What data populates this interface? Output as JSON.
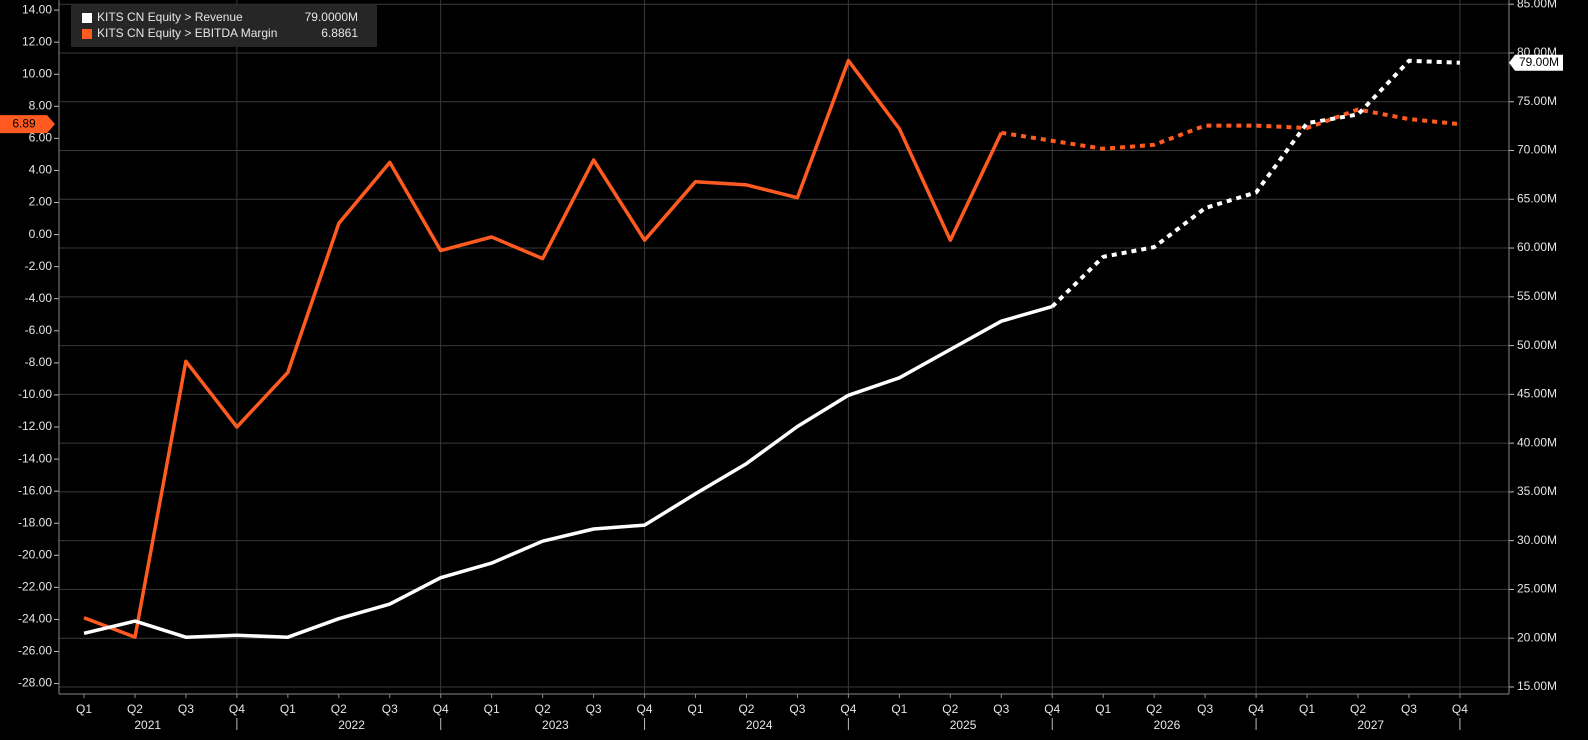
{
  "chart_data": {
    "type": "line",
    "categories": [
      "Q1",
      "Q2",
      "Q3",
      "Q4",
      "Q1",
      "Q2",
      "Q3",
      "Q4",
      "Q1",
      "Q2",
      "Q3",
      "Q4",
      "Q1",
      "Q2",
      "Q3",
      "Q4",
      "Q1",
      "Q2",
      "Q3",
      "Q4",
      "Q1",
      "Q2",
      "Q3",
      "Q4",
      "Q1",
      "Q2",
      "Q3",
      "Q4"
    ],
    "years": [
      "2021",
      "2022",
      "2023",
      "2024",
      "2025",
      "2026",
      "2027"
    ],
    "series": [
      {
        "name": "KITS CN Equity > Revenue",
        "color": "#ffffff",
        "axis": "y2",
        "dashed_from": 19,
        "legend_value": {
          "value": 79,
          "label": "79.0000M"
        },
        "axis_tag": {
          "value": 79,
          "label": "79.00M"
        },
        "values": [
          20.5,
          21.75,
          20.1,
          20.3,
          20.1,
          22.0,
          23.5,
          26.2,
          27.7,
          29.95,
          31.2,
          31.6,
          34.8,
          37.9,
          41.7,
          44.9,
          46.7,
          49.6,
          52.5,
          54.0,
          59.1,
          60.1,
          64.1,
          65.7,
          72.8,
          73.7,
          79.2,
          79.0
        ]
      },
      {
        "name": "KITS CN Equity > EBITDA Margin",
        "color": "#ff5a1f",
        "dashed_from": 18,
        "legend_value": 6.8861,
        "axis_tag": {
          "value": 6.8861,
          "label": "6.89"
        },
        "values": [
          -23.9,
          -25.1,
          -7.9,
          -12.0,
          -8.6,
          0.7,
          4.5,
          -1.0,
          -0.15,
          -1.5,
          4.65,
          -0.35,
          3.3,
          3.1,
          2.3,
          10.85,
          6.6,
          -0.35,
          6.35,
          5.85,
          5.35,
          5.6,
          6.8,
          6.8,
          6.65,
          7.8,
          7.2,
          6.8861
        ]
      }
    ],
    "ylim": [
      -28.65,
      14.63
    ],
    "yticks": [
      {
        "value": 14,
        "label": "14.00"
      },
      {
        "value": 12,
        "label": "12.00"
      },
      {
        "value": 10,
        "label": "10.00"
      },
      {
        "value": 8,
        "label": "8.00"
      },
      {
        "value": 6,
        "label": "6.00"
      },
      {
        "value": 4,
        "label": "4.00"
      },
      {
        "value": 2,
        "label": "2.00"
      },
      {
        "value": 0,
        "label": "0.00"
      },
      {
        "value": -2,
        "label": "-2.00"
      },
      {
        "value": -4,
        "label": "-4.00"
      },
      {
        "value": -6,
        "label": "-6.00"
      },
      {
        "value": -8,
        "label": "-8.00"
      },
      {
        "value": -10,
        "label": "-10.00"
      },
      {
        "value": -12,
        "label": "-12.00"
      },
      {
        "value": -14,
        "label": "-14.00"
      },
      {
        "value": -16,
        "label": "-16.00"
      },
      {
        "value": -18,
        "label": "-18.00"
      },
      {
        "value": -20,
        "label": "-20.00"
      },
      {
        "value": -22,
        "label": "-22.00"
      },
      {
        "value": -24,
        "label": "-24.00"
      },
      {
        "value": -26,
        "label": "-26.00"
      },
      {
        "value": -28,
        "label": "-28.00"
      }
    ],
    "y2lim": [
      14.28,
      85.43
    ],
    "y2ticks": [
      {
        "value": 85,
        "label": "85.00M"
      },
      {
        "value": 80,
        "label": "80.00M"
      },
      {
        "value": 75,
        "label": "75.00M"
      },
      {
        "value": 70,
        "label": "70.00M"
      },
      {
        "value": 65,
        "label": "65.00M"
      },
      {
        "value": 60,
        "label": "60.00M"
      },
      {
        "value": 55,
        "label": "55.00M"
      },
      {
        "value": 50,
        "label": "50.00M"
      },
      {
        "value": 45,
        "label": "45.00M"
      },
      {
        "value": 40,
        "label": "40.00M"
      },
      {
        "value": 35,
        "label": "35.00M"
      },
      {
        "value": 30,
        "label": "30.00M"
      },
      {
        "value": 25,
        "label": "25.00M"
      },
      {
        "value": 20,
        "label": "20.00M"
      },
      {
        "value": 15,
        "label": "15.00M"
      }
    ],
    "grid": true
  }
}
